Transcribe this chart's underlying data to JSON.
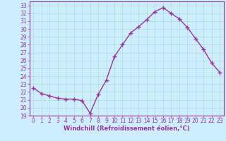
{
  "x": [
    0,
    1,
    2,
    3,
    4,
    5,
    6,
    7,
    8,
    9,
    10,
    11,
    12,
    13,
    14,
    15,
    16,
    17,
    18,
    19,
    20,
    21,
    22,
    23
  ],
  "y": [
    22.5,
    21.8,
    21.5,
    21.2,
    21.1,
    21.1,
    20.9,
    19.3,
    21.7,
    23.5,
    26.5,
    28.0,
    29.5,
    30.3,
    31.2,
    32.2,
    32.7,
    32.0,
    31.3,
    30.2,
    28.8,
    27.4,
    25.7,
    24.5
  ],
  "line_color": "#993399",
  "marker": "+",
  "markersize": 4,
  "linewidth": 1.0,
  "xlabel": "Windchill (Refroidissement éolien,°C)",
  "ylim": [
    19,
    33.5
  ],
  "yticks": [
    19,
    20,
    21,
    22,
    23,
    24,
    25,
    26,
    27,
    28,
    29,
    30,
    31,
    32,
    33
  ],
  "xticks": [
    0,
    1,
    2,
    3,
    4,
    5,
    6,
    7,
    8,
    9,
    10,
    11,
    12,
    13,
    14,
    15,
    16,
    17,
    18,
    19,
    20,
    21,
    22,
    23
  ],
  "bg_color": "#cceeff",
  "grid_color": "#aaddcc",
  "line_border_color": "#993399",
  "tick_color": "#993399",
  "xlabel_color": "#993399",
  "xlabel_fontsize": 6.0,
  "tick_fontsize": 5.5
}
